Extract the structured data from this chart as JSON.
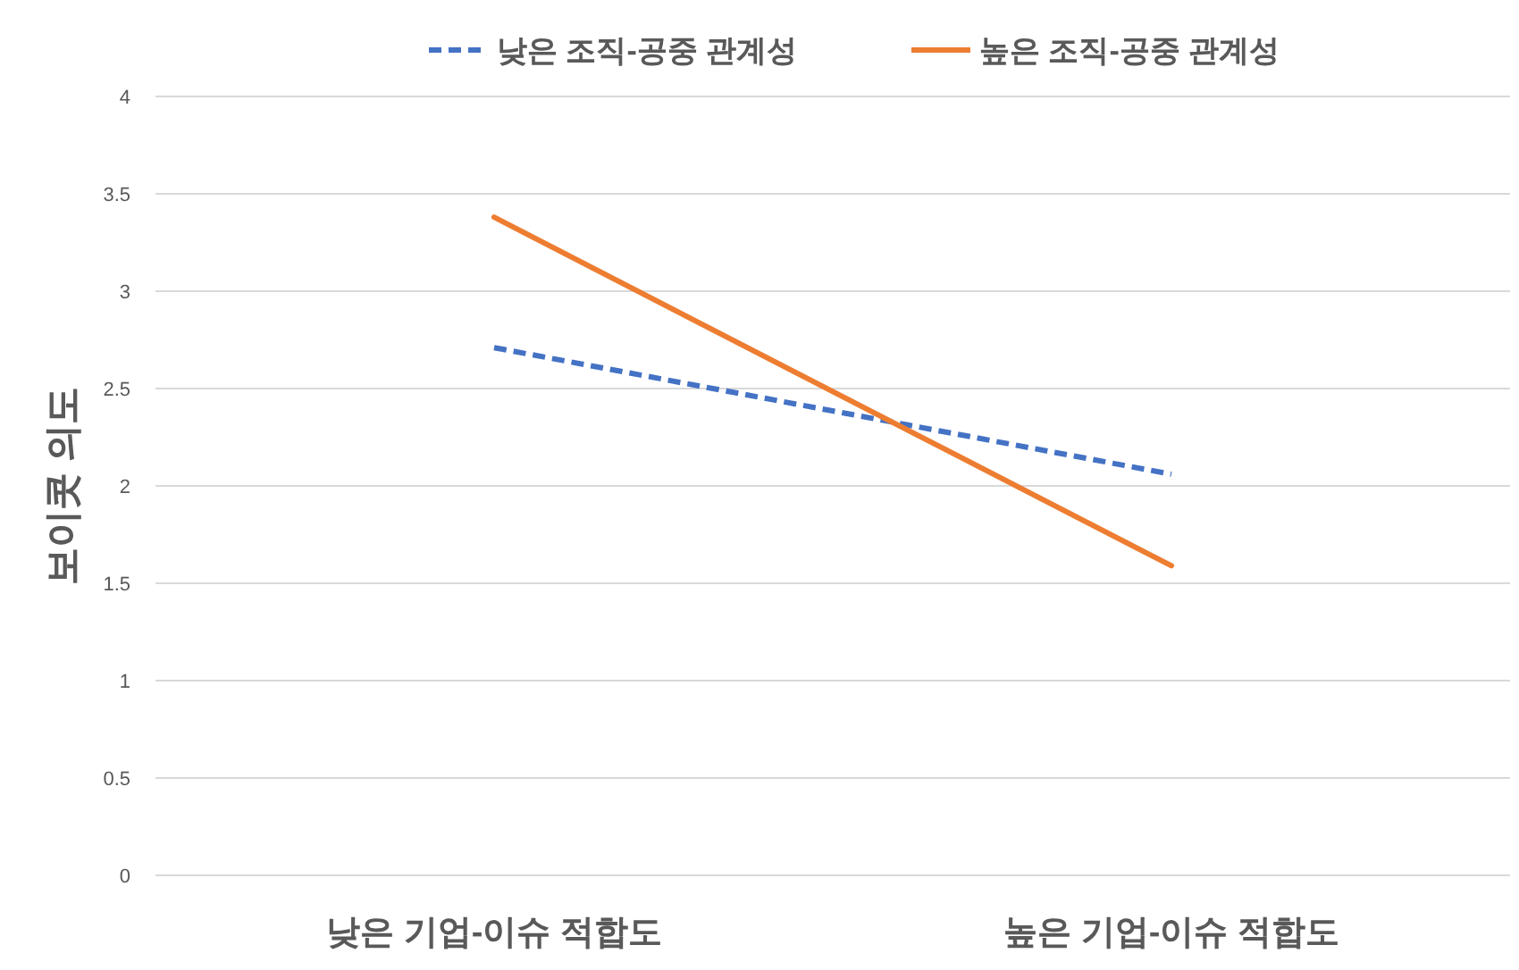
{
  "chart_data": {
    "type": "line",
    "ylabel": "보이콧 의도",
    "categories": [
      "낮은 기업-이슈 적합도",
      "높은 기업-이슈 적합도"
    ],
    "series": [
      {
        "name": "낮은 조직-공중 관계성",
        "color": "#4472c4",
        "line_style": "dashed",
        "values": [
          2.71,
          2.06
        ]
      },
      {
        "name": "높은 조직-공중 관계성",
        "color": "#ed7d31",
        "line_style": "solid",
        "values": [
          3.38,
          1.59
        ]
      }
    ],
    "ylim": [
      0,
      4
    ],
    "yticks": [
      0,
      0.5,
      1,
      1.5,
      2,
      2.5,
      3,
      3.5,
      4
    ],
    "grid": "y",
    "legend": "top",
    "marker": "none"
  }
}
